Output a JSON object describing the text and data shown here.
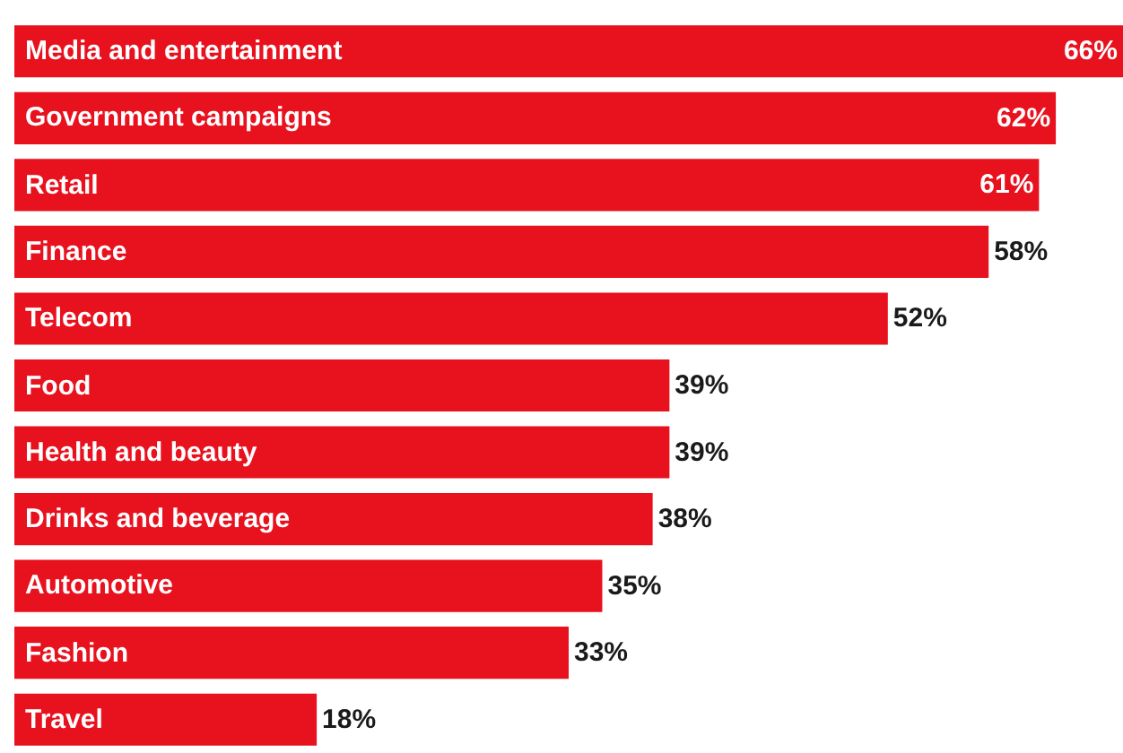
{
  "chart_data": {
    "type": "bar",
    "orientation": "horizontal",
    "color": "#e8111e",
    "categories": [
      "Media and entertainment",
      "Government campaigns",
      "Retail",
      "Finance",
      "Telecom",
      "Food",
      "Health and beauty",
      "Drinks and beverage",
      "Automotive",
      "Fashion",
      "Travel"
    ],
    "values": [
      66,
      62,
      61,
      58,
      52,
      39,
      39,
      38,
      35,
      33,
      18
    ],
    "value_labels": [
      "66%",
      "62%",
      "61%",
      "58%",
      "52%",
      "39%",
      "39%",
      "38%",
      "35%",
      "33%",
      "18%"
    ]
  }
}
